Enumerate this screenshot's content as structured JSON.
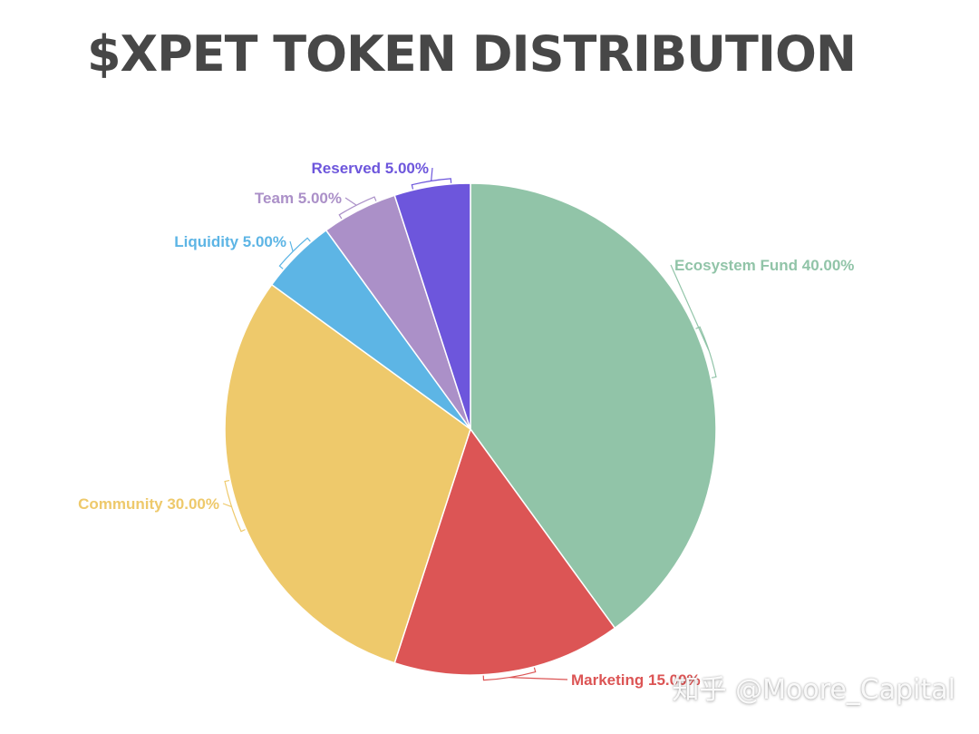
{
  "chart_data": {
    "type": "pie",
    "title": "$XPET TOKEN DISTRIBUTION",
    "slices": [
      {
        "label": "Ecosystem Fund 40.00%",
        "name": "Ecosystem Fund",
        "value": 40.0,
        "color": "#91c4a8"
      },
      {
        "label": "Marketing 15.00%",
        "name": "Marketing",
        "value": 15.0,
        "color": "#dc5555"
      },
      {
        "label": "Community 30.00%",
        "name": "Community",
        "value": 30.0,
        "color": "#eec96b"
      },
      {
        "label": "Liquidity 5.00%",
        "name": "Liquidity",
        "value": 5.0,
        "color": "#5db5e5"
      },
      {
        "label": "Team 5.00%",
        "name": "Team",
        "value": 5.0,
        "color": "#ab90c8"
      },
      {
        "label": "Reserved 5.00%",
        "name": "Reserved",
        "value": 5.0,
        "color": "#6d56dc"
      }
    ],
    "legend": "none"
  },
  "watermark": "知乎 @Moore_Capital"
}
